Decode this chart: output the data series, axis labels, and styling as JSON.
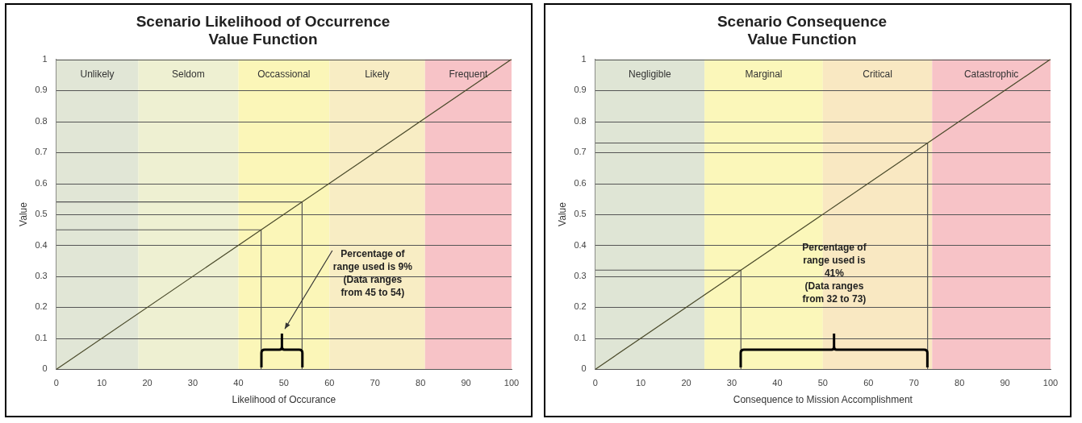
{
  "chart_data": [
    {
      "type": "line",
      "title": "Scenario Likelihood of Occurrence\nValue Function",
      "xlabel": "Likelihood of Occurance",
      "ylabel": "Value",
      "series": [
        {
          "color": "#4a4a2a",
          "x": [
            0,
            100
          ],
          "values": [
            0,
            1
          ]
        },
        {
          "color": "#555555",
          "x": [
            0,
            45,
            45
          ],
          "values": [
            0.45,
            0.45,
            0
          ]
        },
        {
          "color": "#555555",
          "x": [
            0,
            54,
            54
          ],
          "values": [
            0.54,
            0.54,
            0
          ]
        }
      ],
      "xlim": [
        0,
        100
      ],
      "xticks": [
        0,
        10,
        20,
        30,
        40,
        50,
        60,
        70,
        80,
        90,
        100
      ],
      "ylim": [
        0,
        1
      ],
      "yticks": [
        0,
        0.1,
        0.2,
        0.3,
        0.4,
        0.5,
        0.6,
        0.7,
        0.8,
        0.9,
        1
      ],
      "grid": "y",
      "legend": false,
      "marker": "none",
      "line_style": "solid",
      "bands": [
        {
          "axis": "x",
          "from": 0,
          "to": 18,
          "label": "Unlikely",
          "color": "#e1e6d6"
        },
        {
          "axis": "x",
          "from": 18,
          "to": 40,
          "label": "Seldom",
          "color": "#eef0d2"
        },
        {
          "axis": "x",
          "from": 40,
          "to": 60,
          "label": "Occassional",
          "color": "#fbf6b8"
        },
        {
          "axis": "x",
          "from": 60,
          "to": 81,
          "label": "Likely",
          "color": "#f8edc4"
        },
        {
          "axis": "x",
          "from": 81,
          "to": 100,
          "label": "Frequent",
          "color": "#f7c3c7"
        }
      ],
      "annotations": [
        "Percentage of\nrange used is 9%\n(Data ranges\nfrom 45 to 54)"
      ]
    },
    {
      "type": "line",
      "title": "Scenario Consequence\nValue Function",
      "xlabel": "Consequence to Mission Accomplishment",
      "ylabel": "Value",
      "series": [
        {
          "color": "#4a4a2a",
          "x": [
            0,
            100
          ],
          "values": [
            0,
            1
          ]
        },
        {
          "color": "#555555",
          "x": [
            0,
            32,
            32
          ],
          "values": [
            0.32,
            0.32,
            0
          ]
        },
        {
          "color": "#555555",
          "x": [
            0,
            73,
            73
          ],
          "values": [
            0.73,
            0.73,
            0
          ]
        }
      ],
      "xlim": [
        0,
        100
      ],
      "xticks": [
        0,
        10,
        20,
        30,
        40,
        50,
        60,
        70,
        80,
        90,
        100
      ],
      "ylim": [
        0,
        1
      ],
      "yticks": [
        0,
        0.1,
        0.2,
        0.3,
        0.4,
        0.5,
        0.6,
        0.7,
        0.8,
        0.9,
        1
      ],
      "grid": "y",
      "legend": false,
      "marker": "none",
      "line_style": "solid",
      "bands": [
        {
          "axis": "x",
          "from": 0,
          "to": 24,
          "label": "Negligible",
          "color": "#dfe5d5"
        },
        {
          "axis": "x",
          "from": 24,
          "to": 50,
          "label": "Marginal",
          "color": "#fbf7ba"
        },
        {
          "axis": "x",
          "from": 50,
          "to": 74,
          "label": "Critical",
          "color": "#f9e8c2"
        },
        {
          "axis": "x",
          "from": 74,
          "to": 100,
          "label": "Catastrophic",
          "color": "#f7c3c7"
        }
      ],
      "annotations": [
        "Percentage of\nrange used is\n41%\n(Data ranges\nfrom 32 to 73)"
      ]
    }
  ]
}
